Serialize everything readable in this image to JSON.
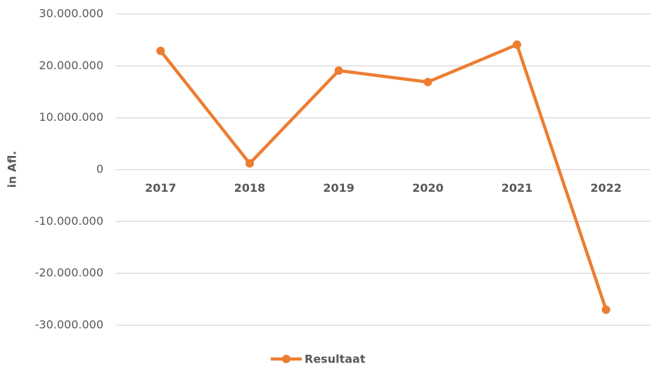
{
  "chart_data": {
    "type": "line",
    "y_axis_label": "in Afl.",
    "categories": [
      "2017",
      "2018",
      "2019",
      "2020",
      "2021",
      "2022"
    ],
    "series": [
      {
        "name": "Resultaat",
        "color": "#ed7d31",
        "values": [
          22900000,
          1200000,
          19100000,
          16900000,
          24100000,
          -27000000
        ]
      }
    ],
    "ylim": [
      -30000000,
      30000000
    ],
    "yticks": [
      {
        "value": -30000000,
        "label": "-30.000.000"
      },
      {
        "value": -20000000,
        "label": "-20.000.000"
      },
      {
        "value": -10000000,
        "label": "-10.000.000"
      },
      0,
      {
        "value": 10000000,
        "label": "10.000.000"
      },
      {
        "value": 20000000,
        "label": "20.000.000"
      },
      {
        "value": 30000000,
        "label": "30.000.000"
      }
    ],
    "grid": true,
    "legend": "bottom"
  }
}
